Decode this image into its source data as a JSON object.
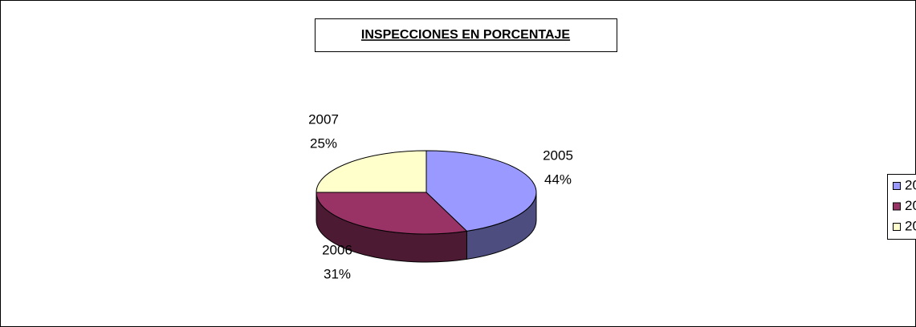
{
  "chart_data": {
    "type": "pie",
    "title": "INSPECCIONES EN PORCENTAJE",
    "categories": [
      "2005",
      "2006",
      "2007"
    ],
    "values": [
      44,
      31,
      25
    ],
    "value_labels": [
      "44%",
      "31%",
      "25%"
    ],
    "colors": [
      "#9999ff",
      "#993366",
      "#ffffcc"
    ],
    "legend": "right"
  }
}
